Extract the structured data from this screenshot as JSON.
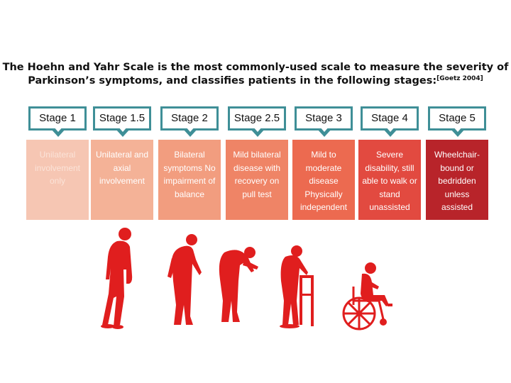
{
  "title": {
    "text": "The Hoehn and Yahr Scale is the most commonly-used scale to measure the severity of Parkinson’s symptoms, and classifies patients in the following stages:",
    "citation": "[Goetz 2004]"
  },
  "stages": [
    {
      "label": "Stage 1",
      "description": "Unilateral involvement only",
      "color": "#f6c6b3",
      "text_color": "#fbe3d8"
    },
    {
      "label": "Stage 1.5",
      "description": "Unilateral and axial involvement",
      "color": "#f4b297",
      "text_color": "#ffffff"
    },
    {
      "label": "Stage 2",
      "description": "Bilateral symptoms No impairment of balance",
      "color": "#f29d7f",
      "text_color": "#ffffff"
    },
    {
      "label": "Stage 2.5",
      "description": "Mild bilateral disease with recovery on pull test",
      "color": "#ef8466",
      "text_color": "#ffffff"
    },
    {
      "label": "Stage 3",
      "description": "Mild to moderate disease Physically independent",
      "color": "#ec6a50",
      "text_color": "#ffffff"
    },
    {
      "label": "Stage 4",
      "description": "Severe disability, still able to walk or stand unassisted",
      "color": "#e24a40",
      "text_color": "#ffffff"
    },
    {
      "label": "Stage 5",
      "description": "Wheelchair-bound or bedridden unless assisted",
      "color": "#b8242a",
      "text_color": "#ffffff"
    }
  ],
  "figure_color": "#e01e1e",
  "figures": [
    {
      "icon": "standing-person-icon"
    },
    {
      "icon": "stooped-person-icon"
    },
    {
      "icon": "bent-over-person-icon"
    },
    {
      "icon": "person-with-walker-icon"
    },
    {
      "icon": "person-in-wheelchair-icon"
    }
  ]
}
